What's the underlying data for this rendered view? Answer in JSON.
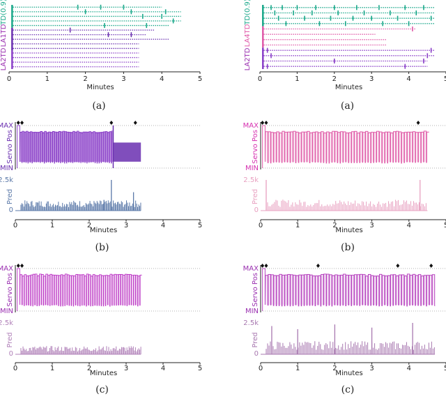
{
  "colors": {
    "teal": "#1aa88a",
    "purple": "#6a2fb0",
    "violet": "#8a3fc8",
    "magenta": "#d630b0",
    "pink": "#e05aa8",
    "pred_blue": "#5a78a8",
    "pred_pink": "#e8a0c0",
    "pred_mauve": "#b080b8",
    "dark_teal": "#0f6b5a",
    "label_purple": "#9a2fb0"
  },
  "chart_data": [
    {
      "id": "left-a",
      "type": "raster",
      "caption": "(a)",
      "xlabel": "Minutes",
      "xlim": [
        0,
        5
      ],
      "xticks": [
        "0",
        "1",
        "2",
        "3",
        "4",
        "5"
      ],
      "row_labels": [
        "TD(0.9)",
        "LA1TD",
        "LA2TD"
      ],
      "rows": [
        {
          "group": "TD(0.9)",
          "end": 4.0,
          "marks": [
            1.8,
            2.4,
            3.0
          ]
        },
        {
          "group": "TD(0.9)",
          "end": 4.5,
          "marks": [
            2.0,
            3.2,
            4.1
          ]
        },
        {
          "group": "TD(0.9)",
          "end": 4.5,
          "marks": [
            3.5,
            4.0
          ]
        },
        {
          "group": "TD(0.9)",
          "end": 4.5,
          "marks": [
            4.3
          ]
        },
        {
          "group": "TD(0.9)",
          "end": 4.2,
          "marks": [
            2.5,
            3.6
          ]
        },
        {
          "group": "LA1TD",
          "end": 3.8,
          "marks": [
            1.6
          ]
        },
        {
          "group": "LA1TD",
          "end": 3.6,
          "marks": [
            2.6,
            3.2
          ]
        },
        {
          "group": "LA1TD",
          "end": 4.2,
          "marks": []
        },
        {
          "group": "LA1TD",
          "end": 3.4,
          "marks": []
        },
        {
          "group": "LA1TD",
          "end": 3.4,
          "marks": []
        },
        {
          "group": "LA2TD",
          "end": 3.4,
          "marks": []
        },
        {
          "group": "LA2TD",
          "end": 3.4,
          "marks": []
        },
        {
          "group": "LA2TD",
          "end": 3.4,
          "marks": []
        },
        {
          "group": "LA2TD",
          "end": 3.4,
          "marks": []
        }
      ]
    },
    {
      "id": "right-a",
      "type": "raster",
      "caption": "(a)",
      "xlabel": "Minutes",
      "xlim": [
        0,
        5
      ],
      "xticks": [
        "0",
        "1",
        "2",
        "3",
        "4",
        "5"
      ],
      "row_labels": [
        "TD(0.9)",
        "LA4TD",
        "LA2TD"
      ],
      "rows": [
        {
          "group": "TD(0.9)",
          "end": 4.7,
          "marks": [
            0.3,
            0.6,
            1.0,
            1.5,
            2.0,
            2.6,
            3.2,
            3.9,
            4.4
          ]
        },
        {
          "group": "TD(0.9)",
          "end": 4.7,
          "marks": [
            0.4,
            0.9,
            1.4,
            2.1,
            2.8,
            3.5,
            4.2
          ]
        },
        {
          "group": "TD(0.9)",
          "end": 4.7,
          "marks": [
            0.5,
            1.2,
            1.9,
            2.5,
            3.0,
            3.7,
            4.6
          ]
        },
        {
          "group": "TD(0.9)",
          "end": 4.7,
          "marks": [
            0.7,
            1.6,
            2.3,
            3.3,
            4.0
          ]
        },
        {
          "group": "LA4TD",
          "end": 4.2,
          "marks": [
            4.1
          ]
        },
        {
          "group": "LA4TD",
          "end": 3.1,
          "marks": []
        },
        {
          "group": "LA4TD",
          "end": 3.4,
          "marks": []
        },
        {
          "group": "LA4TD",
          "end": 3.4,
          "marks": []
        },
        {
          "group": "LA2TD",
          "end": 4.7,
          "marks": [
            0.2,
            4.6
          ]
        },
        {
          "group": "LA2TD",
          "end": 4.7,
          "marks": [
            0.3,
            4.5
          ]
        },
        {
          "group": "LA2TD",
          "end": 4.5,
          "marks": [
            2.0,
            4.4
          ]
        },
        {
          "group": "LA2TD",
          "end": 4.5,
          "marks": [
            0.2,
            3.9
          ]
        }
      ]
    },
    {
      "id": "left-b",
      "type": "signal",
      "caption": "(b)",
      "xlabel": "Minutes",
      "xlim": [
        0,
        5
      ],
      "xticks": [
        "0",
        "1",
        "2",
        "3",
        "4",
        "5"
      ],
      "servo_label": "Servo Pos",
      "servo_max": "MAX",
      "servo_min": "MIN",
      "pred_label": "Pred",
      "pred_ticks": [
        "2.5k",
        "0"
      ],
      "end": 3.4,
      "period": 0.055,
      "secondary_from": 2.65,
      "markers": [
        0.08,
        0.18,
        2.6,
        3.25
      ],
      "pred_base": 0.28,
      "pred_spikes": [
        {
          "x": 2.6,
          "v": 1.0
        },
        {
          "x": 3.2,
          "v": 0.6
        },
        {
          "x": 2.4,
          "v": 0.35
        }
      ],
      "colors": [
        "#8a3fc8",
        "#6a2fb0",
        "#5a78a8"
      ]
    },
    {
      "id": "right-b",
      "type": "signal",
      "caption": "(b)",
      "xlabel": "Minutes",
      "xlim": [
        0,
        5
      ],
      "xticks": [
        "0",
        "1",
        "2",
        "3",
        "4",
        "5"
      ],
      "servo_label": "Servo Pos",
      "servo_max": "MAX",
      "servo_min": "MIN",
      "pred_label": "Pred",
      "pred_ticks": [
        "2.5k",
        "0"
      ],
      "end": 4.5,
      "period": 0.075,
      "secondary_from": 99,
      "markers": [
        0.05,
        0.15,
        4.25
      ],
      "pred_base": 0.3,
      "pred_spikes": [
        {
          "x": 0.15,
          "v": 1.0
        },
        {
          "x": 4.3,
          "v": 1.0
        }
      ],
      "colors": [
        "#e05aa8",
        "#d630b0",
        "#e8a0c0"
      ]
    },
    {
      "id": "left-c",
      "type": "signal",
      "caption": "(c)",
      "xlabel": "Minutes",
      "xlim": [
        0,
        5
      ],
      "xticks": [
        "0",
        "1",
        "2",
        "3",
        "4",
        "5"
      ],
      "servo_label": "Servo Pos",
      "servo_max": "MAX",
      "servo_min": "MIN",
      "pred_label": "Pred",
      "pred_ticks": [
        "2.5k",
        "0"
      ],
      "end": 3.4,
      "period": 0.058,
      "secondary_from": 99,
      "markers": [
        0.08,
        0.18
      ],
      "pred_base": 0.22,
      "pred_spikes": [],
      "colors": [
        "#c040c8",
        "#9a2fb0",
        "#b080b8"
      ]
    },
    {
      "id": "right-c",
      "type": "signal",
      "caption": "(c)",
      "xlabel": "Minutes",
      "xlim": [
        0,
        5
      ],
      "xticks": [
        "0",
        "1",
        "2",
        "3",
        "4",
        "5"
      ],
      "servo_label": "Servo Pos",
      "servo_max": "MAX",
      "servo_min": "MIN",
      "pred_label": "Pred",
      "pred_ticks": [
        "2.5k",
        "0"
      ],
      "end": 4.7,
      "period": 0.075,
      "secondary_from": 99,
      "markers": [
        0.05,
        0.15,
        1.55,
        3.7,
        4.6
      ],
      "pred_base": 0.35,
      "pred_spikes": [
        {
          "x": 0.3,
          "v": 0.9
        },
        {
          "x": 1.0,
          "v": 0.8
        },
        {
          "x": 2.0,
          "v": 0.95
        },
        {
          "x": 3.0,
          "v": 0.85
        },
        {
          "x": 4.1,
          "v": 1.0
        }
      ],
      "colors": [
        "#b845c0",
        "#9a2fb0",
        "#a878b0"
      ]
    }
  ]
}
